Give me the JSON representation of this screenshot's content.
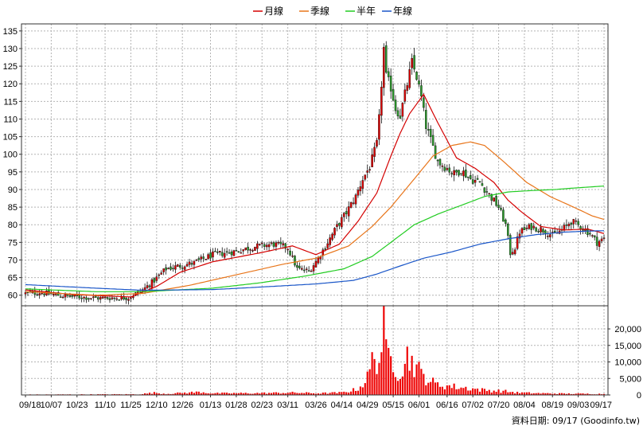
{
  "legend": [
    {
      "label": "月線",
      "color": "#d40000"
    },
    {
      "label": "季線",
      "color": "#e8751a"
    },
    {
      "label": "半年",
      "color": "#22cc22"
    },
    {
      "label": "年線",
      "color": "#1a56c8"
    }
  ],
  "footer": {
    "text": "資料日期: 09/17  (Goodinfo.tw)"
  },
  "colors": {
    "up": "#e00000",
    "down": "#2a9a2a",
    "grid": "#b4b4b4",
    "volume": "#ee0000"
  },
  "chart_data": {
    "type": "candlestick",
    "price_axis": {
      "ylim": [
        57,
        137
      ],
      "ticks": [
        60,
        65,
        70,
        75,
        80,
        85,
        90,
        95,
        100,
        105,
        110,
        115,
        120,
        125,
        130,
        135
      ]
    },
    "volume_axis": {
      "ylim": [
        0,
        27000
      ],
      "ticks": [
        0,
        5000,
        10000,
        15000,
        20000
      ],
      "tick_labels": [
        "0",
        "5,000",
        "10,000",
        "15,000",
        "20,000"
      ]
    },
    "x_labels": [
      "09/18",
      "10/07",
      "10/23",
      "11/10",
      "11/25",
      "12/10",
      "12/26",
      "01/13",
      "01/28",
      "02/23",
      "03/11",
      "03/26",
      "04/14",
      "04/29",
      "05/15",
      "06/01",
      "06/16",
      "07/02",
      "07/20",
      "08/04",
      "08/19",
      "09/03",
      "09/17"
    ],
    "sessions": 248,
    "close_anchors": [
      [
        0,
        60.5
      ],
      [
        6,
        60.8
      ],
      [
        16,
        59.8
      ],
      [
        30,
        59.2
      ],
      [
        44,
        59.3
      ],
      [
        50,
        61.5
      ],
      [
        55,
        64.2
      ],
      [
        60,
        67.5
      ],
      [
        72,
        69.2
      ],
      [
        80,
        71.5
      ],
      [
        90,
        72.5
      ],
      [
        98,
        73.8
      ],
      [
        106,
        74.5
      ],
      [
        112,
        73.5
      ],
      [
        116,
        67.5
      ],
      [
        121,
        66.8
      ],
      [
        125,
        70.5
      ],
      [
        129,
        75.0
      ],
      [
        133,
        79.5
      ],
      [
        137,
        83.5
      ],
      [
        141,
        88.0
      ],
      [
        144,
        93.0
      ],
      [
        147,
        96.5
      ],
      [
        150,
        103.0
      ],
      [
        151,
        110.0
      ],
      [
        153,
        130.0
      ],
      [
        154,
        122.0
      ],
      [
        156,
        119.0
      ],
      [
        158,
        113.0
      ],
      [
        160,
        111.0
      ],
      [
        163,
        120.0
      ],
      [
        165,
        126.0
      ],
      [
        167,
        122.0
      ],
      [
        169,
        116.0
      ],
      [
        171,
        108.0
      ],
      [
        173,
        104.0
      ],
      [
        176,
        98.0
      ],
      [
        180,
        96.0
      ],
      [
        183,
        94.5
      ],
      [
        186,
        95.5
      ],
      [
        190,
        93.0
      ],
      [
        194,
        92.0
      ],
      [
        198,
        88.5
      ],
      [
        202,
        85.0
      ],
      [
        205,
        80.0
      ],
      [
        207,
        72.0
      ],
      [
        209,
        73.5
      ],
      [
        211,
        78.0
      ],
      [
        216,
        79.5
      ],
      [
        221,
        78.5
      ],
      [
        225,
        77.0
      ],
      [
        229,
        78.5
      ],
      [
        233,
        81.0
      ],
      [
        237,
        79.5
      ],
      [
        241,
        77.5
      ],
      [
        244,
        75.0
      ],
      [
        247,
        76.0
      ]
    ],
    "volume_anchors": [
      [
        0,
        120
      ],
      [
        44,
        200
      ],
      [
        48,
        200
      ],
      [
        55,
        650
      ],
      [
        60,
        350
      ],
      [
        75,
        900
      ],
      [
        80,
        500
      ],
      [
        100,
        550
      ],
      [
        115,
        700
      ],
      [
        125,
        500
      ],
      [
        135,
        700
      ],
      [
        141,
        1600
      ],
      [
        143,
        2500
      ],
      [
        146,
        5200
      ],
      [
        149,
        12500
      ],
      [
        151,
        9500
      ],
      [
        153,
        23800
      ],
      [
        154,
        12000
      ],
      [
        157,
        11000
      ],
      [
        159,
        7000
      ],
      [
        161,
        8500
      ],
      [
        163,
        11800
      ],
      [
        166,
        9500
      ],
      [
        169,
        6200
      ],
      [
        172,
        4800
      ],
      [
        175,
        3200
      ],
      [
        180,
        2800
      ],
      [
        185,
        2300
      ],
      [
        190,
        2000
      ],
      [
        195,
        1500
      ],
      [
        200,
        1300
      ],
      [
        205,
        1100
      ],
      [
        210,
        700
      ],
      [
        220,
        500
      ],
      [
        230,
        400
      ],
      [
        240,
        350
      ],
      [
        247,
        300
      ]
    ],
    "moving_averages": [
      {
        "name": "月線",
        "points": [
          [
            0,
            61.5
          ],
          [
            20,
            60.2
          ],
          [
            45,
            59.5
          ],
          [
            56,
            62.5
          ],
          [
            66,
            66.5
          ],
          [
            80,
            69.5
          ],
          [
            100,
            72.0
          ],
          [
            114,
            74.0
          ],
          [
            124,
            71.5
          ],
          [
            134,
            74.5
          ],
          [
            142,
            81.0
          ],
          [
            150,
            89.0
          ],
          [
            156,
            99.5
          ],
          [
            160,
            106.0
          ],
          [
            164,
            111.5
          ],
          [
            170,
            117.0
          ],
          [
            176,
            109.0
          ],
          [
            184,
            99.0
          ],
          [
            192,
            96.0
          ],
          [
            200,
            92.0
          ],
          [
            206,
            87.0
          ],
          [
            212,
            83.5
          ],
          [
            220,
            79.5
          ],
          [
            230,
            78.5
          ],
          [
            240,
            78.8
          ],
          [
            247,
            77.5
          ]
        ]
      },
      {
        "name": "季線",
        "points": [
          [
            0,
            61.0
          ],
          [
            30,
            60.0
          ],
          [
            50,
            60.5
          ],
          [
            70,
            62.8
          ],
          [
            90,
            65.8
          ],
          [
            110,
            68.8
          ],
          [
            124,
            70.5
          ],
          [
            138,
            74.0
          ],
          [
            148,
            79.5
          ],
          [
            156,
            85.0
          ],
          [
            166,
            93.0
          ],
          [
            174,
            99.5
          ],
          [
            182,
            102.5
          ],
          [
            190,
            103.5
          ],
          [
            196,
            102.5
          ],
          [
            204,
            98.0
          ],
          [
            214,
            92.0
          ],
          [
            224,
            88.0
          ],
          [
            234,
            85.0
          ],
          [
            242,
            82.5
          ],
          [
            247,
            81.5
          ]
        ]
      },
      {
        "name": "半年",
        "points": [
          [
            0,
            61.8
          ],
          [
            30,
            61.0
          ],
          [
            50,
            61.0
          ],
          [
            80,
            62.0
          ],
          [
            100,
            63.5
          ],
          [
            120,
            65.5
          ],
          [
            136,
            67.5
          ],
          [
            148,
            71.0
          ],
          [
            158,
            76.0
          ],
          [
            166,
            80.0
          ],
          [
            176,
            83.0
          ],
          [
            186,
            85.5
          ],
          [
            196,
            88.0
          ],
          [
            206,
            89.3
          ],
          [
            216,
            89.7
          ],
          [
            226,
            90.0
          ],
          [
            236,
            90.5
          ],
          [
            247,
            91.0
          ]
        ]
      },
      {
        "name": "年線",
        "points": [
          [
            0,
            63.0
          ],
          [
            30,
            62.0
          ],
          [
            50,
            61.4
          ],
          [
            80,
            61.6
          ],
          [
            100,
            62.3
          ],
          [
            124,
            63.2
          ],
          [
            140,
            64.2
          ],
          [
            150,
            66.0
          ],
          [
            160,
            68.3
          ],
          [
            170,
            70.5
          ],
          [
            182,
            72.3
          ],
          [
            194,
            74.5
          ],
          [
            206,
            76.0
          ],
          [
            218,
            77.2
          ],
          [
            230,
            77.9
          ],
          [
            240,
            78.2
          ],
          [
            247,
            78.3
          ]
        ]
      }
    ]
  }
}
